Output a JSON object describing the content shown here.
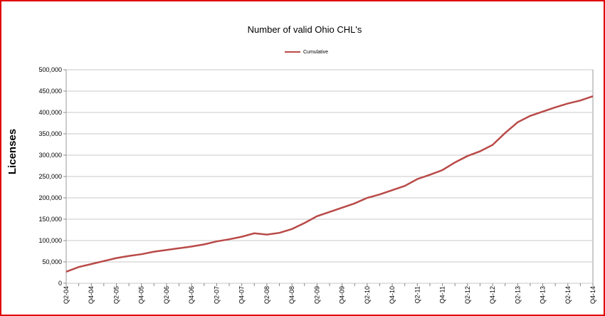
{
  "chart_data": {
    "type": "line",
    "title": "Number of valid Ohio CHL's",
    "y_label": "Licenses",
    "categories": [
      "Q2-04",
      null,
      "Q4-04",
      null,
      "Q2-05",
      null,
      "Q4-05",
      null,
      "Q2-06",
      null,
      "Q4-06",
      null,
      "Q2-07",
      null,
      "Q4-07",
      null,
      "Q2-08",
      null,
      "Q4-08",
      null,
      "Q2-09",
      null,
      "Q4-09",
      null,
      "Q2-10",
      null,
      "Q4-10",
      null,
      "Q2-11",
      null,
      "Q4-11",
      null,
      "Q2-12",
      null,
      "Q4-12",
      null,
      "Q2-13",
      null,
      "Q4-13",
      null,
      "Q2-14",
      null,
      "Q4-14"
    ],
    "series": [
      {
        "name": "Cumulative",
        "color": "#b94a48",
        "values": [
          27000,
          38000,
          45000,
          52000,
          59000,
          64000,
          68000,
          74000,
          78000,
          82000,
          86000,
          91000,
          98000,
          103000,
          109000,
          117000,
          114000,
          118000,
          127000,
          141000,
          157000,
          167000,
          177000,
          187000,
          200000,
          208000,
          218000,
          228000,
          244000,
          254000,
          265000,
          283000,
          298000,
          309000,
          324000,
          352000,
          377000,
          392000,
          402000,
          412000,
          421000,
          428000,
          438000
        ]
      }
    ],
    "ylim": [
      0,
      500000
    ],
    "yticks": [
      0,
      {
        "value": 50000,
        "label": "50,000"
      },
      {
        "value": 100000,
        "label": "100,000"
      },
      {
        "value": 150000,
        "label": "150,000"
      },
      {
        "value": 200000,
        "label": "200,000"
      },
      {
        "value": 250000,
        "label": "250,000"
      },
      {
        "value": 300000,
        "label": "300,000"
      },
      {
        "value": 350000,
        "label": "350,000"
      },
      {
        "value": 400000,
        "label": "400,000"
      },
      {
        "value": 450000,
        "label": "450,000"
      },
      {
        "value": 500000,
        "label": "500,000"
      }
    ],
    "grid": true,
    "legend": "top"
  }
}
